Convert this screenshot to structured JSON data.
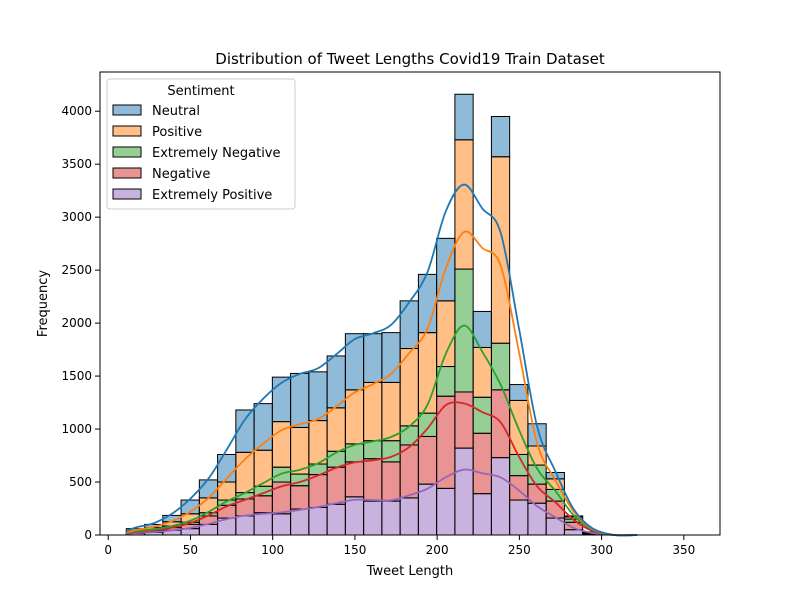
{
  "chart_data": {
    "type": "histogram-stacked",
    "title": "Distribution of Tweet Lengths Covid19 Train Dataset",
    "xlabel": "Tweet Length",
    "ylabel": "Frequency",
    "xlim": [
      -5,
      372
    ],
    "ylim": [
      0,
      4370
    ],
    "xticks": [
      0,
      50,
      100,
      150,
      200,
      250,
      300,
      350
    ],
    "yticks": [
      0,
      500,
      1000,
      1500,
      2000,
      2500,
      3000,
      3500,
      4000
    ],
    "legend": {
      "title": "Sentiment",
      "placement": "top-left"
    },
    "bin_start": 11,
    "bin_width": 11.1,
    "series": [
      {
        "name": "Extremely Positive",
        "color": "#9467bd",
        "values": [
          15,
          25,
          45,
          60,
          100,
          160,
          180,
          210,
          200,
          245,
          260,
          290,
          360,
          320,
          320,
          350,
          480,
          440,
          820,
          390,
          730,
          330,
          300,
          160,
          50,
          10
        ]
      },
      {
        "name": "Negative",
        "color": "#d62728",
        "values": [
          10,
          15,
          25,
          40,
          80,
          120,
          160,
          160,
          300,
          220,
          310,
          350,
          330,
          400,
          370,
          500,
          450,
          870,
          530,
          570,
          640,
          230,
          180,
          160,
          70,
          5
        ]
      },
      {
        "name": "Extremely Negative",
        "color": "#2ca02c",
        "values": [
          5,
          10,
          15,
          20,
          30,
          50,
          60,
          90,
          140,
          110,
          100,
          150,
          170,
          170,
          200,
          180,
          220,
          280,
          1160,
          340,
          440,
          200,
          180,
          110,
          30,
          5
        ]
      },
      {
        "name": "Positive",
        "color": "#ff7f0e",
        "values": [
          10,
          20,
          40,
          80,
          140,
          170,
          380,
          340,
          430,
          440,
          410,
          410,
          510,
          550,
          550,
          730,
          760,
          620,
          1220,
          470,
          1760,
          510,
          180,
          100,
          20,
          5
        ]
      },
      {
        "name": "Neutral",
        "color": "#1f77b4",
        "values": [
          20,
          30,
          60,
          130,
          170,
          260,
          400,
          440,
          420,
          510,
          460,
          490,
          530,
          460,
          470,
          450,
          550,
          590,
          430,
          340,
          380,
          150,
          210,
          60,
          10,
          5
        ]
      }
    ],
    "stack_order_bottom_to_top": [
      "Extremely Positive",
      "Negative",
      "Extremely Negative",
      "Positive",
      "Neutral"
    ],
    "legend_order": [
      "Neutral",
      "Positive",
      "Extremely Negative",
      "Negative",
      "Extremely Positive"
    ],
    "kde_curves": true
  }
}
